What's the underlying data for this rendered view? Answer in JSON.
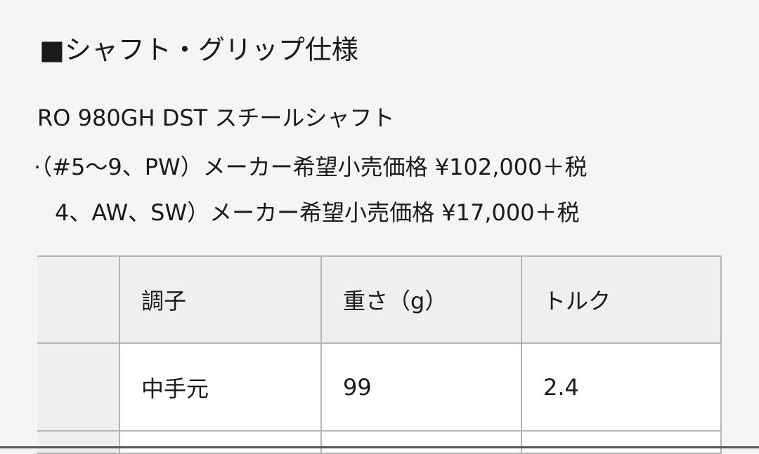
{
  "title": "■シャフト・グリップ仕様",
  "lines": [
    "RO 980GH DST スチールシャフト",
    "·（#5〜9、PW）メーカー希望小売価格 ¥102,000＋税",
    "4、AW、SW）メーカー希望小売価格 ¥17,000＋税"
  ],
  "table": {
    "headers": [
      "",
      "調子",
      "重さ（g）",
      "トルク"
    ],
    "rows": [
      [
        "",
        "中手元",
        "99",
        "2.4"
      ]
    ]
  }
}
